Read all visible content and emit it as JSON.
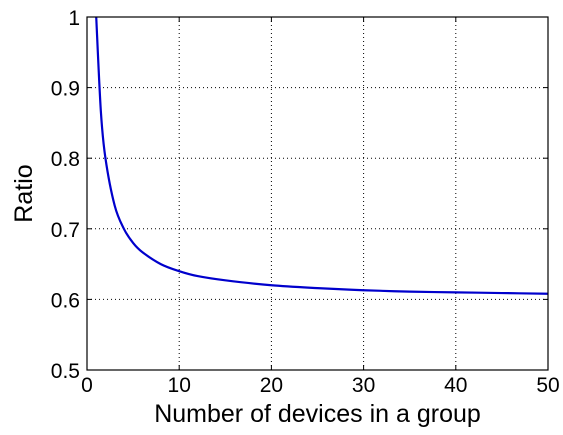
{
  "chart_data": {
    "type": "line",
    "title": "",
    "xlabel": "Number of devices in a group",
    "ylabel": "Ratio",
    "xlim": [
      0,
      50
    ],
    "ylim": [
      0.5,
      1
    ],
    "xticks": [
      0,
      10,
      20,
      30,
      40,
      50
    ],
    "yticks": [
      0.5,
      0.6,
      0.7,
      0.8,
      0.9,
      1
    ],
    "xtick_labels": [
      "0",
      "10",
      "20",
      "30",
      "40",
      "50"
    ],
    "ytick_labels": [
      "0.5",
      "0.6",
      "0.7",
      "0.8",
      "0.9",
      "1"
    ],
    "grid": true,
    "legend": "none",
    "series": [
      {
        "color": "#0000cc",
        "x": [
          1,
          1.5,
          2,
          3,
          4,
          5,
          6,
          8,
          10,
          12,
          15,
          20,
          25,
          30,
          35,
          40,
          45,
          50
        ],
        "y": [
          1.0,
          0.867,
          0.8,
          0.733,
          0.7,
          0.68,
          0.667,
          0.65,
          0.64,
          0.633,
          0.627,
          0.62,
          0.616,
          0.613,
          0.611,
          0.61,
          0.609,
          0.608
        ]
      }
    ]
  }
}
